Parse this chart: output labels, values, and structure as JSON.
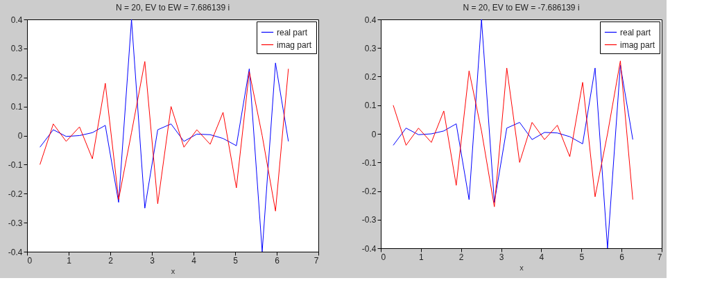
{
  "chart_data": [
    {
      "type": "line",
      "title": "N = 20, EV to EW = 7.686139 i",
      "xlabel": "x",
      "x": [
        0.31,
        0.63,
        0.94,
        1.26,
        1.57,
        1.88,
        2.2,
        2.51,
        2.83,
        3.14,
        3.46,
        3.77,
        4.08,
        4.4,
        4.71,
        5.03,
        5.34,
        5.65,
        5.97,
        6.28
      ],
      "series": [
        {
          "name": "real part",
          "color": "#0000ff",
          "values": [
            -0.04,
            0.02,
            -0.003,
            0.0,
            0.01,
            0.035,
            -0.23,
            0.4,
            -0.25,
            0.02,
            0.04,
            -0.02,
            0.005,
            0.003,
            -0.01,
            -0.035,
            0.23,
            -0.4,
            0.25,
            -0.02
          ]
        },
        {
          "name": "imag part",
          "color": "#ff0000",
          "values": [
            -0.1,
            0.04,
            -0.02,
            0.03,
            -0.08,
            0.18,
            -0.22,
            0.01,
            0.255,
            -0.235,
            0.1,
            -0.04,
            0.02,
            -0.03,
            0.08,
            -0.18,
            0.22,
            0.0,
            -0.26,
            0.23
          ]
        }
      ],
      "xlim": [
        0,
        7
      ],
      "xticks": [
        0,
        1,
        2,
        3,
        4,
        5,
        6,
        7
      ],
      "ylim": [
        -0.4,
        0.4
      ],
      "yticks": [
        -0.4,
        -0.3,
        -0.2,
        -0.1,
        0,
        0.1,
        0.2,
        0.3,
        0.4
      ],
      "legend": "top right",
      "grid": false,
      "line_style": "solid"
    },
    {
      "type": "line",
      "title": "N = 20, EV to EW = -7.686139 i",
      "xlabel": "x",
      "x": [
        0.31,
        0.63,
        0.94,
        1.26,
        1.57,
        1.88,
        2.2,
        2.51,
        2.83,
        3.14,
        3.46,
        3.77,
        4.08,
        4.4,
        4.71,
        5.03,
        5.34,
        5.65,
        5.97,
        6.28
      ],
      "series": [
        {
          "name": "real part",
          "color": "#0000ff",
          "values": [
            -0.04,
            0.02,
            -0.003,
            0.0,
            0.01,
            0.035,
            -0.23,
            0.4,
            -0.24,
            0.02,
            0.04,
            -0.02,
            0.005,
            0.003,
            -0.01,
            -0.035,
            0.23,
            -0.4,
            0.24,
            -0.02
          ]
        },
        {
          "name": "imag part",
          "color": "#ff0000",
          "values": [
            0.1,
            -0.04,
            0.02,
            -0.03,
            0.08,
            -0.18,
            0.22,
            0.01,
            -0.255,
            0.23,
            -0.1,
            0.04,
            -0.02,
            0.03,
            -0.08,
            0.18,
            -0.22,
            0.0,
            0.255,
            -0.23
          ]
        }
      ],
      "xlim": [
        0,
        7
      ],
      "xticks": [
        0,
        1,
        2,
        3,
        4,
        5,
        6,
        7
      ],
      "ylim": [
        -0.4,
        0.4
      ],
      "yticks": [
        -0.4,
        -0.3,
        -0.2,
        -0.1,
        0,
        0.1,
        0.2,
        0.3,
        0.4
      ],
      "legend": "top right",
      "grid": false,
      "line_style": "solid"
    }
  ]
}
